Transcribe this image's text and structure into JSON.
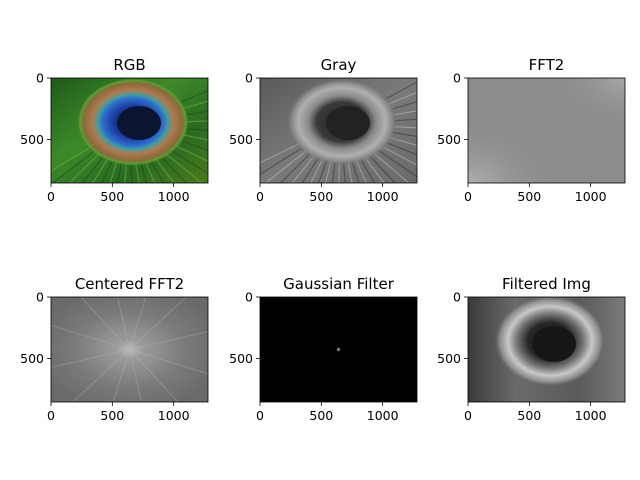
{
  "figure": {
    "panels": [
      {
        "title": "RGB",
        "image": "peacock-feather-color"
      },
      {
        "title": "Gray",
        "image": "peacock-feather-grayscale"
      },
      {
        "title": "FFT2",
        "image": "fft-magnitude-uncentered"
      },
      {
        "title": "Centered FFT2",
        "image": "fft-magnitude-centered"
      },
      {
        "title": "Gaussian Filter",
        "image": "gaussian-lowpass-mask"
      },
      {
        "title": "Filtered Img",
        "image": "lowpass-filtered-grayscale"
      }
    ]
  },
  "chart_data": {
    "type": "heatmap",
    "layout": "2x3 image grid",
    "xticks": [
      "0",
      "500",
      "1000"
    ],
    "yticks": [
      "0",
      "500"
    ],
    "xlim": [
      0,
      1280
    ],
    "ylim": [
      853,
      0
    ],
    "x_tick_values": [
      0,
      500,
      1000
    ],
    "y_tick_values": [
      0,
      500
    ],
    "gaussian_center": [
      640,
      426
    ],
    "grid": false
  }
}
